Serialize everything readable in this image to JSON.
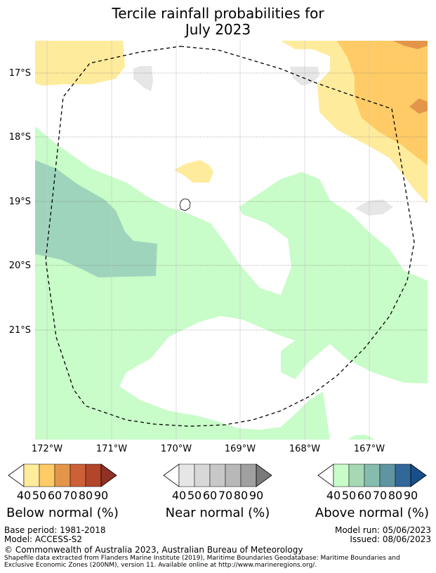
{
  "title": {
    "line1": "Tercile rainfall probabilities for",
    "line2": "July 2023"
  },
  "map": {
    "lat_labels": [
      "17°S",
      "18°S",
      "19°S",
      "20°S",
      "21°S"
    ],
    "lon_labels": [
      "172°W",
      "171°W",
      "170°W",
      "169°W",
      "168°W",
      "167°W"
    ],
    "colors": {
      "below_50": "#ffeb9c",
      "below_60": "#fecb66",
      "below_70": "#e3964a",
      "near_50": "#e6e6e6",
      "above_50": "#c8fcc8",
      "above_60": "#9fd4bc",
      "island": "#ffffff"
    }
  },
  "legends": {
    "below": {
      "label": "Below normal (%)",
      "ticks": [
        "40",
        "50",
        "60",
        "70",
        "80",
        "90"
      ],
      "colors": [
        "#ffeb9c",
        "#fecb66",
        "#e3964a",
        "#cc6138",
        "#b2452a",
        "#913125"
      ]
    },
    "near": {
      "label": "Near normal (%)",
      "ticks": [
        "40",
        "50",
        "60",
        "70",
        "80",
        "90"
      ],
      "colors": [
        "#e6e6e6",
        "#d8d8d8",
        "#c8c8c8",
        "#b8b8b8",
        "#a0a0a0",
        "#7a7a7a"
      ]
    },
    "above": {
      "label": "Above normal (%)",
      "ticks": [
        "40",
        "50",
        "60",
        "70",
        "80",
        "90"
      ],
      "colors": [
        "#c8fcc8",
        "#a6d8b6",
        "#86bcad",
        "#5e95a1",
        "#32679a",
        "#174f8c"
      ]
    }
  },
  "footer": {
    "base_period": "Base period: 1981-2018",
    "model": "Model: ACCESS-S2",
    "model_run": "Model run: 05/06/2023",
    "issued": "Issued: 08/06/2023",
    "copyright": "© Commonwealth of Australia 2023, Australian Bureau of Meteorology",
    "shapefile_line1": "Shapefile data extracted from Flanders Marine Institute (2019), Maritime Boundaries Geodatabase: Maritime Boundaries and",
    "shapefile_line2": "Exclusive Economic Zones (200NM), version 11. Available online at http://www.marineregions.org/."
  }
}
